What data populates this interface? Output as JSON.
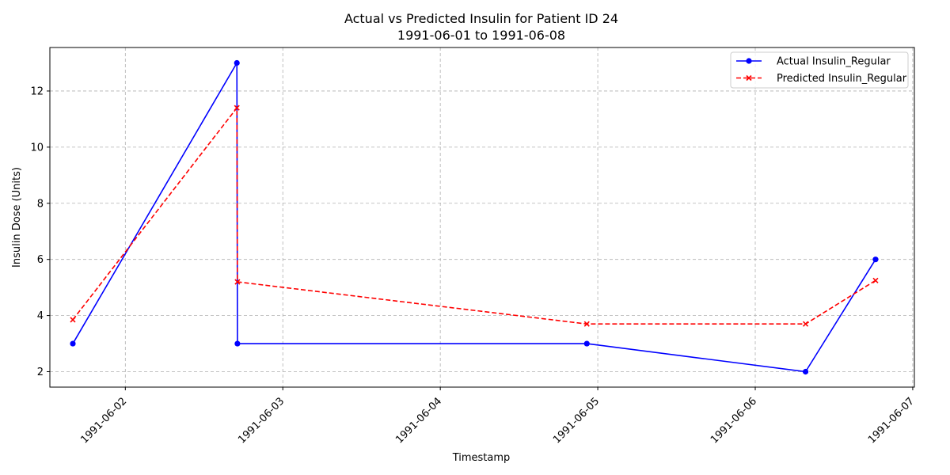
{
  "chart_data": {
    "type": "line",
    "title": "Actual vs Predicted Insulin for Patient ID 24",
    "subtitle": "1991-06-01 to 1991-06-08",
    "xlabel": "Timestamp",
    "ylabel": "Insulin Dose (Units)",
    "x_ticks": [
      "1991-06-02",
      "1991-06-03",
      "1991-06-04",
      "1991-06-05",
      "1991-06-06",
      "1991-06-07"
    ],
    "y_ticks": [
      2,
      4,
      6,
      8,
      10,
      12
    ],
    "xlim": [
      "1991-06-01 12:30",
      "1991-06-07 00:15"
    ],
    "ylim": [
      1.45,
      13.55
    ],
    "grid": true,
    "legend_position": "top-right",
    "series": [
      {
        "name": "Actual Insulin_Regular",
        "color": "#0000ff",
        "line_style": "solid",
        "marker": "circle",
        "x": [
          "1991-06-01 16:00",
          "1991-06-02 17:00",
          "1991-06-02 17:05",
          "1991-06-04 22:20",
          "1991-06-06 07:40",
          "1991-06-06 18:20"
        ],
        "values": [
          3,
          13,
          3,
          3,
          2,
          6
        ]
      },
      {
        "name": "Predicted Insulin_Regular",
        "color": "#ff0000",
        "line_style": "dashed",
        "marker": "x",
        "x": [
          "1991-06-01 16:00",
          "1991-06-02 17:00",
          "1991-06-02 17:05",
          "1991-06-04 22:20",
          "1991-06-06 07:40",
          "1991-06-06 18:20"
        ],
        "values": [
          3.85,
          11.4,
          5.2,
          3.7,
          3.7,
          5.25
        ]
      }
    ]
  }
}
